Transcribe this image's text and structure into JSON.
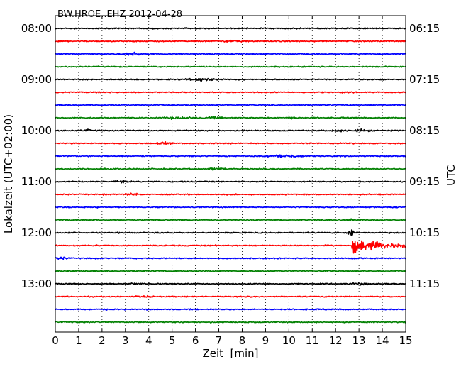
{
  "chart_data": {
    "type": "line",
    "title": "BW.HROE..EHZ 2012-04-28",
    "xlabel": "Zeit  [min]",
    "ylabel_left": "Lokalzeit (UTC+02:00)",
    "ylabel_right": "UTC",
    "xlim": [
      0,
      15
    ],
    "x_ticks": [
      0,
      1,
      2,
      3,
      4,
      5,
      6,
      7,
      8,
      9,
      10,
      11,
      12,
      13,
      14,
      15
    ],
    "grid": "vertical dotted",
    "row_duration_min": 15,
    "row_colors": [
      "#000000",
      "#ff0000",
      "#0000ff",
      "#008000"
    ],
    "left_time_labels": [
      "08:00",
      "09:00",
      "10:00",
      "11:00",
      "12:00",
      "13:00"
    ],
    "right_time_labels": [
      "06:15",
      "07:15",
      "08:15",
      "09:15",
      "10:15",
      "11:15"
    ],
    "rows": [
      {
        "local_start": "08:00",
        "events": []
      },
      {
        "local_start": "08:15",
        "events": [
          {
            "t": 7.6,
            "amp": 1.3,
            "len": 1.0
          }
        ]
      },
      {
        "local_start": "08:30",
        "events": [
          {
            "t": 3.3,
            "amp": 2.6,
            "len": 0.9
          }
        ]
      },
      {
        "local_start": "08:45",
        "events": []
      },
      {
        "local_start": "09:00",
        "events": [
          {
            "t": 6.3,
            "amp": 2.2,
            "len": 1.2
          }
        ]
      },
      {
        "local_start": "09:15",
        "events": []
      },
      {
        "local_start": "09:30",
        "events": []
      },
      {
        "local_start": "09:45",
        "events": [
          {
            "t": 5.3,
            "amp": 1.6,
            "len": 1.2
          },
          {
            "t": 6.8,
            "amp": 1.4,
            "len": 0.8
          },
          {
            "t": 10.2,
            "amp": 1.8,
            "len": 0.5
          }
        ]
      },
      {
        "local_start": "10:00",
        "events": [
          {
            "t": 1.4,
            "amp": 1.2,
            "len": 0.6
          },
          {
            "t": 12.2,
            "amp": 1.2,
            "len": 0.8
          },
          {
            "t": 13.1,
            "amp": 1.8,
            "len": 0.7
          }
        ]
      },
      {
        "local_start": "10:15",
        "events": [
          {
            "t": 4.6,
            "amp": 1.7,
            "len": 0.7
          }
        ]
      },
      {
        "local_start": "10:30",
        "events": [
          {
            "t": 9.8,
            "amp": 2.4,
            "len": 1.4
          }
        ]
      },
      {
        "local_start": "10:45",
        "events": [
          {
            "t": 6.9,
            "amp": 1.5,
            "len": 0.9
          }
        ]
      },
      {
        "local_start": "11:00",
        "events": [
          {
            "t": 2.8,
            "amp": 1.6,
            "len": 0.6
          }
        ]
      },
      {
        "local_start": "11:15",
        "events": [
          {
            "t": 3.3,
            "amp": 2.0,
            "len": 0.5
          }
        ]
      },
      {
        "local_start": "11:30",
        "events": []
      },
      {
        "local_start": "11:45",
        "events": [
          {
            "t": 12.6,
            "amp": 1.6,
            "len": 0.5
          }
        ]
      },
      {
        "local_start": "12:00",
        "events": [
          {
            "t": 12.7,
            "amp": 6.0,
            "len": 0.3
          }
        ]
      },
      {
        "local_start": "12:15",
        "events": [
          {
            "t": 12.7,
            "amp": 14.0,
            "len": 3.0
          }
        ]
      },
      {
        "local_start": "12:30",
        "events": [
          {
            "t": 0.3,
            "amp": 2.0,
            "len": 0.5
          }
        ]
      },
      {
        "local_start": "12:45",
        "events": [
          {
            "t": 0.9,
            "amp": 1.8,
            "len": 0.6
          }
        ]
      },
      {
        "local_start": "13:00",
        "events": [
          {
            "t": 3.4,
            "amp": 1.2,
            "len": 0.6
          },
          {
            "t": 13.1,
            "amp": 2.0,
            "len": 0.8
          }
        ]
      },
      {
        "local_start": "13:15",
        "events": [
          {
            "t": 3.8,
            "amp": 1.2,
            "len": 0.6
          }
        ]
      },
      {
        "local_start": "13:30",
        "events": []
      },
      {
        "local_start": "13:45",
        "events": []
      }
    ]
  }
}
